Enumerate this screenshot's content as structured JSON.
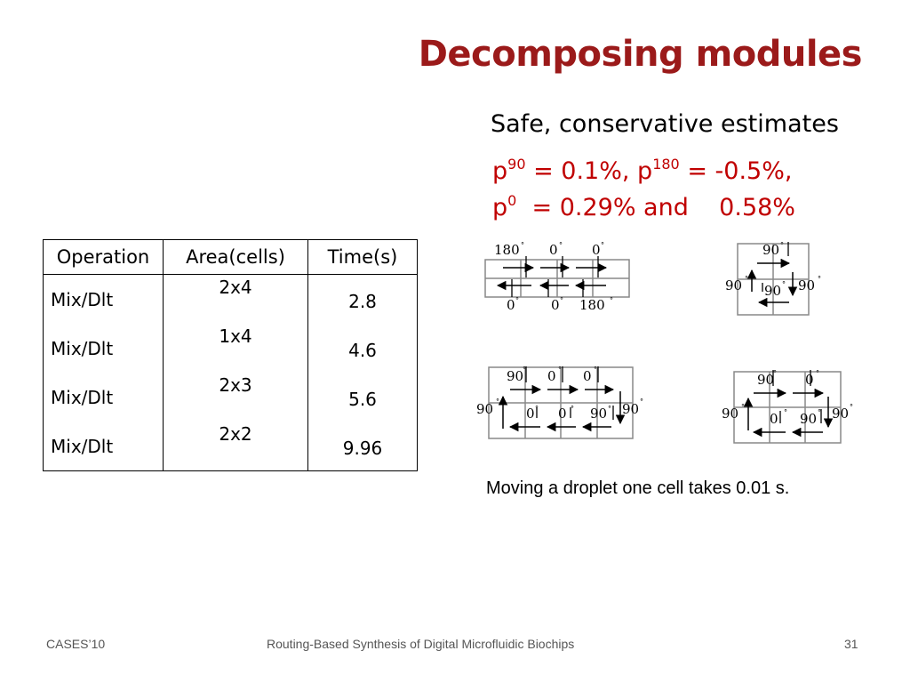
{
  "title": "Decomposing modules",
  "subtitle": "Safe, conservative estimates",
  "estimates": {
    "line1": {
      "p1": "p",
      "sup1": "90",
      "eq1": " = 0.1%, p",
      "sup2": "180",
      "eq2": " = -0.5%,"
    },
    "line2": {
      "p": "p",
      "sup": "0",
      "rest": "  = 0.29% and    0.58%"
    }
  },
  "table": {
    "headers": [
      "Operation",
      "Area(cells)",
      "Time(s)"
    ],
    "rows": [
      [
        "Mix/Dlt",
        "2x4",
        "2.8"
      ],
      [
        "Mix/Dlt",
        "1x4",
        "4.6"
      ],
      [
        "Mix/Dlt",
        "2x3",
        "5.6"
      ],
      [
        "Mix/Dlt",
        "2x2",
        "9.96"
      ]
    ]
  },
  "diagrams": {
    "d1": {
      "top": [
        "180",
        "0",
        "0"
      ],
      "bottom": [
        "0",
        "0",
        "180"
      ]
    },
    "d2": {
      "top": "90",
      "left": "90",
      "middle": "90",
      "right": "90"
    },
    "d3": {
      "top": [
        "90",
        "0",
        "0"
      ],
      "left": "90",
      "bottom": [
        "0",
        "0",
        "90"
      ],
      "right": "90"
    },
    "d4": {
      "top": [
        "90",
        "0"
      ],
      "left": "90",
      "bottom": [
        "0",
        "90"
      ],
      "right": "90"
    }
  },
  "caption": "Moving a droplet one cell takes 0.01 s.",
  "footer": {
    "left": "CASES’10",
    "center": "Routing-Based Synthesis of Digital Microfluidic Biochips",
    "page": "31"
  },
  "colors": {
    "title": "#9b1a1a",
    "estimates": "#c00000"
  }
}
